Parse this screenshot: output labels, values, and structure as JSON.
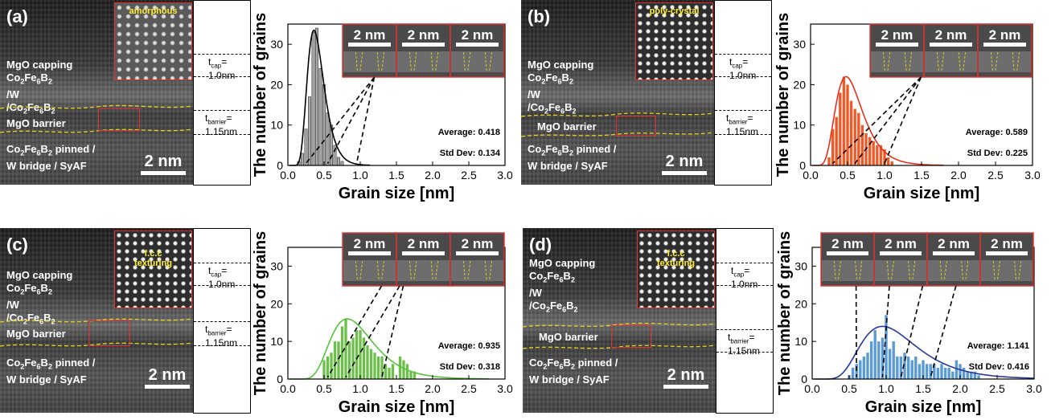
{
  "panels": [
    {
      "letter": "(a)",
      "inset_label": "amorphous",
      "tem_text": {
        "capping": "MgO capping",
        "layer1": "Co",
        "layer1_sub1": "2",
        "layer1_mid": "Fe",
        "layer1_sub2": "6",
        "layer1_end": "B",
        "layer1_sub3": "2",
        "w": "/W",
        "layer2": "/Co",
        "layer2_sub1": "2",
        "layer2_mid": "Fe",
        "layer2_sub2": "6",
        "layer2_end": "B",
        "layer2_sub3": "2",
        "barrier": "MgO barrier",
        "pinned": "Co",
        "pinned_sub1": "2",
        "pinned_mid": "Fe",
        "pinned_sub2": "6",
        "pinned_end": "B",
        "pinned_sub3": "2",
        "pinned_tail": " pinned /",
        "bridge": "W bridge / SyAF"
      },
      "scale_bar": "2 nm",
      "t_cap_label": "t",
      "t_cap_sub": "cap",
      "t_cap_eq": "=",
      "t_cap_value": "1.0nm",
      "t_barrier_label": "t",
      "t_barrier_sub": "barrier",
      "t_barrier_eq": "=",
      "t_barrier_value": "1.15nm",
      "inset_scales": [
        "2 nm",
        "2 nm",
        "2 nm"
      ],
      "stats": {
        "average": "Average: 0.418",
        "std": "Std Dev: 0.134"
      },
      "colors": {
        "bar": "#a9a9a9",
        "fit": "#000000"
      }
    },
    {
      "letter": "(b)",
      "inset_label": "poly-crystal",
      "scale_bar": "2 nm",
      "t_cap_label": "t",
      "t_cap_sub": "cap",
      "t_cap_eq": "=",
      "t_cap_value": "1.0nm",
      "t_barrier_label": "t",
      "t_barrier_sub": "barrier",
      "t_barrier_eq": "=",
      "t_barrier_value": "1.15nm",
      "inset_scales": [
        "2 nm",
        "2 nm",
        "2 nm"
      ],
      "stats": {
        "average": "Average: 0.589",
        "std": "Std Dev: 0.225"
      },
      "colors": {
        "bar": "#f05a28",
        "fit": "#e8301c"
      }
    },
    {
      "letter": "(c)",
      "inset_label": "f.c.c\ntexturing",
      "scale_bar": "2 nm",
      "t_cap_label": "t",
      "t_cap_sub": "cap",
      "t_cap_eq": "=",
      "t_cap_value": "1.0nm",
      "t_barrier_label": "t",
      "t_barrier_sub": "barrier",
      "t_barrier_eq": "=",
      "t_barrier_value": "1.15nm",
      "inset_scales": [
        "2 nm",
        "2 nm",
        "2 nm"
      ],
      "stats": {
        "average": "Average: 0.935",
        "std": "Std Dev: 0.318"
      },
      "colors": {
        "bar": "#6cc04a",
        "fit": "#56c43a"
      }
    },
    {
      "letter": "(d)",
      "inset_label": "f.c.c\ntexturing",
      "scale_bar": "2 nm",
      "t_cap_label": "t",
      "t_cap_sub": "cap",
      "t_cap_eq": "=",
      "t_cap_value": "1.0nm",
      "t_barrier_label": "t",
      "t_barrier_sub": "barrier",
      "t_barrier_eq": "=",
      "t_barrier_value": "1.15nm",
      "inset_scales": [
        "2 nm",
        "2 nm",
        "2 nm",
        "2 nm"
      ],
      "stats": {
        "average": "Average: 1.141",
        "std": "Std Dev: 0.416"
      },
      "colors": {
        "bar": "#5b9bd5",
        "fit": "#27389a"
      }
    }
  ],
  "chart_data": [
    {
      "type": "bar",
      "panel": "(a)",
      "xlabel": "Grain size [nm]",
      "ylabel": "The number of grains",
      "xlim": [
        0.0,
        3.0
      ],
      "ylim": [
        0,
        35
      ],
      "xticks": [
        "0.0",
        "0.5",
        "1.0",
        "1.5",
        "2.0",
        "2.5",
        "3.0"
      ],
      "yticks": [
        "0",
        "10",
        "20",
        "30"
      ],
      "bin_width": 0.05,
      "bins": [
        [
          0.15,
          1
        ],
        [
          0.2,
          3
        ],
        [
          0.25,
          9
        ],
        [
          0.3,
          17
        ],
        [
          0.35,
          33
        ],
        [
          0.4,
          34
        ],
        [
          0.45,
          24
        ],
        [
          0.5,
          20
        ],
        [
          0.55,
          13
        ],
        [
          0.6,
          10
        ],
        [
          0.65,
          5
        ],
        [
          0.7,
          2
        ],
        [
          0.75,
          1
        ]
      ],
      "fit": {
        "kind": "lognormal",
        "peak_x": 0.36,
        "peak_y": 33.5
      }
    },
    {
      "type": "bar",
      "panel": "(b)",
      "xlabel": "Grain size [nm]",
      "ylabel": "The number of grains",
      "xlim": [
        0.0,
        3.0
      ],
      "ylim": [
        0,
        35
      ],
      "xticks": [
        "0.0",
        "0.5",
        "1.0",
        "1.5",
        "2.0",
        "2.5",
        "3.0"
      ],
      "yticks": [
        "0",
        "10",
        "20",
        "30"
      ],
      "bin_width": 0.05,
      "bins": [
        [
          0.25,
          2
        ],
        [
          0.3,
          9
        ],
        [
          0.35,
          12
        ],
        [
          0.4,
          18
        ],
        [
          0.45,
          22
        ],
        [
          0.5,
          20
        ],
        [
          0.55,
          16
        ],
        [
          0.6,
          14
        ],
        [
          0.65,
          13
        ],
        [
          0.7,
          10
        ],
        [
          0.75,
          8
        ],
        [
          0.8,
          7
        ],
        [
          0.85,
          6
        ],
        [
          0.9,
          5
        ],
        [
          0.95,
          5
        ],
        [
          1.0,
          4
        ],
        [
          1.05,
          2
        ],
        [
          1.1,
          1
        ]
      ],
      "fit": {
        "kind": "lognormal",
        "peak_x": 0.48,
        "peak_y": 22
      }
    },
    {
      "type": "bar",
      "panel": "(c)",
      "xlabel": "Grain size [nm]",
      "ylabel": "The number of grains",
      "xlim": [
        0.0,
        3.0
      ],
      "ylim": [
        0,
        35
      ],
      "xticks": [
        "0.0",
        "0.5",
        "1.0",
        "1.5",
        "2.0",
        "2.5",
        "3.0"
      ],
      "yticks": [
        "0",
        "10",
        "20",
        "30"
      ],
      "bin_width": 0.05,
      "bins": [
        [
          0.5,
          5
        ],
        [
          0.55,
          6
        ],
        [
          0.6,
          7
        ],
        [
          0.65,
          10
        ],
        [
          0.7,
          10
        ],
        [
          0.75,
          14
        ],
        [
          0.8,
          16
        ],
        [
          0.85,
          10
        ],
        [
          0.9,
          11
        ],
        [
          0.95,
          13
        ],
        [
          1.0,
          13
        ],
        [
          1.05,
          11
        ],
        [
          1.1,
          9
        ],
        [
          1.15,
          8
        ],
        [
          1.2,
          7
        ],
        [
          1.25,
          6
        ],
        [
          1.3,
          6
        ],
        [
          1.35,
          4
        ],
        [
          1.4,
          3
        ],
        [
          1.45,
          4
        ],
        [
          1.55,
          6
        ],
        [
          1.6,
          5
        ],
        [
          1.65,
          4
        ],
        [
          1.7,
          2
        ],
        [
          1.75,
          2
        ]
      ],
      "fit": {
        "kind": "lognormal",
        "peak_x": 0.82,
        "peak_y": 16
      }
    },
    {
      "type": "bar",
      "panel": "(d)",
      "xlabel": "Grain size [nm]",
      "ylabel": "The number of grains",
      "xlim": [
        0.0,
        3.0
      ],
      "ylim": [
        0,
        35
      ],
      "xticks": [
        "0.0",
        "0.5",
        "1.0",
        "1.5",
        "2.0",
        "2.5",
        "3.0"
      ],
      "yticks": [
        "0",
        "10",
        "20",
        "30"
      ],
      "bin_width": 0.05,
      "bins": [
        [
          0.5,
          1
        ],
        [
          0.55,
          3
        ],
        [
          0.6,
          4
        ],
        [
          0.65,
          5
        ],
        [
          0.7,
          6
        ],
        [
          0.75,
          7
        ],
        [
          0.8,
          10
        ],
        [
          0.85,
          13
        ],
        [
          0.9,
          10
        ],
        [
          0.95,
          11
        ],
        [
          1.0,
          17
        ],
        [
          1.05,
          8
        ],
        [
          1.1,
          10
        ],
        [
          1.15,
          6
        ],
        [
          1.2,
          6
        ],
        [
          1.25,
          7
        ],
        [
          1.3,
          6
        ],
        [
          1.35,
          5
        ],
        [
          1.4,
          6
        ],
        [
          1.45,
          4
        ],
        [
          1.5,
          5
        ],
        [
          1.55,
          4
        ],
        [
          1.6,
          4
        ],
        [
          1.65,
          4
        ],
        [
          1.7,
          3
        ],
        [
          1.75,
          4
        ],
        [
          1.8,
          3
        ],
        [
          1.85,
          3
        ],
        [
          1.9,
          2
        ],
        [
          1.95,
          5
        ],
        [
          2.0,
          4
        ],
        [
          2.05,
          3
        ],
        [
          2.1,
          2
        ],
        [
          2.15,
          2
        ],
        [
          2.2,
          2
        ],
        [
          2.25,
          1
        ]
      ],
      "fit": {
        "kind": "lognormal",
        "peak_x": 0.95,
        "peak_y": 14
      }
    }
  ]
}
